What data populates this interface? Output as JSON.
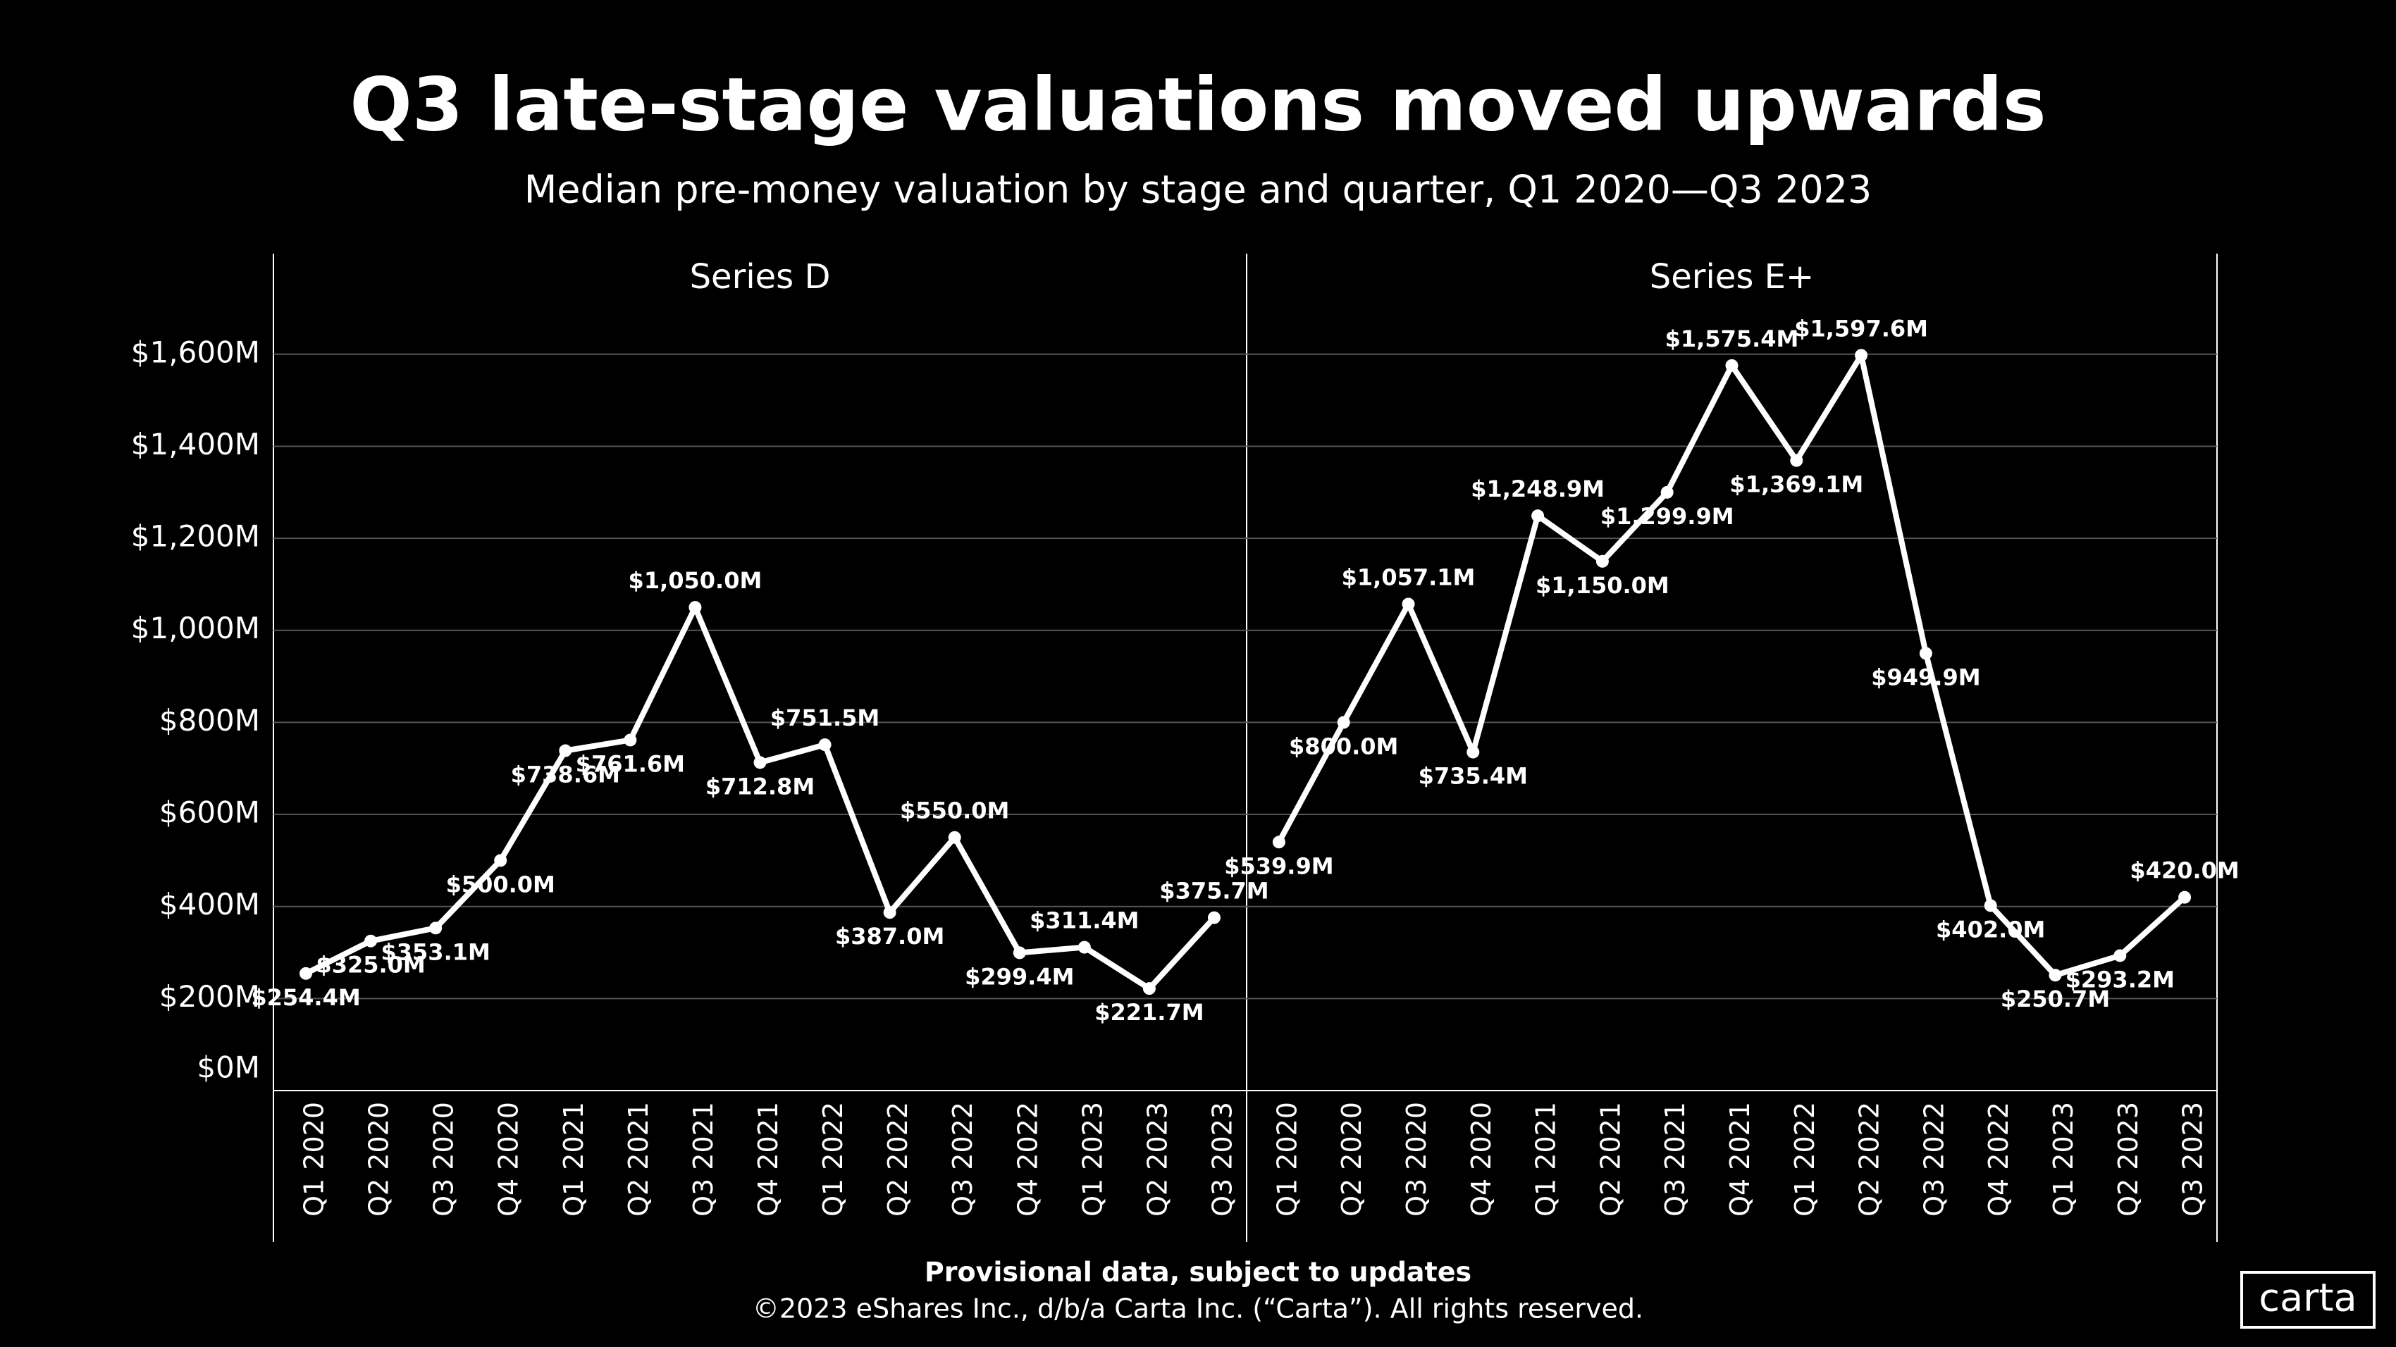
{
  "title": "Q3 late-stage valuations moved upwards",
  "subtitle": "Median pre-money valuation by stage and quarter, Q1 2020—Q3 2023",
  "footer": {
    "note": "Provisional data, subject to updates",
    "copyright": "©2023 eShares Inc., d/b/a Carta Inc. (“Carta”). All rights reserved.",
    "logo": "carta"
  },
  "chart_data": [
    {
      "type": "line",
      "title": "Series D",
      "color": "#ffffff",
      "grid": true,
      "categories": [
        "Q1 2020",
        "Q2 2020",
        "Q3 2020",
        "Q4 2020",
        "Q1 2021",
        "Q2 2021",
        "Q3 2021",
        "Q4 2021",
        "Q1 2022",
        "Q2 2022",
        "Q3 2022",
        "Q4 2022",
        "Q1 2023",
        "Q2 2023",
        "Q3 2023"
      ],
      "values": [
        254.4,
        325.0,
        353.1,
        500.0,
        738.6,
        761.6,
        1050.0,
        712.8,
        751.5,
        387.0,
        550.0,
        299.4,
        311.4,
        221.7,
        375.7
      ],
      "value_labels": [
        "$254.4M",
        "$325.0M",
        "$353.1M",
        "$500.0M",
        "$738.6M",
        "$761.6M",
        "$1,050.0M",
        "$712.8M",
        "$751.5M",
        "$387.0M",
        "$550.0M",
        "$299.4M",
        "$311.4M",
        "$221.7M",
        "$375.7M"
      ],
      "ylim": [
        0,
        1690
      ],
      "yticks": [
        {
          "value": 0,
          "label": "$0M"
        },
        {
          "value": 200,
          "label": "$200M"
        },
        {
          "value": 400,
          "label": "$400M"
        },
        {
          "value": 600,
          "label": "$600M"
        },
        {
          "value": 800,
          "label": "$800M"
        },
        {
          "value": 1000,
          "label": "$1,000M"
        },
        {
          "value": 1200,
          "label": "$1,200M"
        },
        {
          "value": 1400,
          "label": "$1,400M"
        },
        {
          "value": 1600,
          "label": "$1,600M"
        }
      ]
    },
    {
      "type": "line",
      "title": "Series E+",
      "color": "#ffffff",
      "grid": true,
      "categories": [
        "Q1 2020",
        "Q2 2020",
        "Q3 2020",
        "Q4 2020",
        "Q1 2021",
        "Q2 2021",
        "Q3 2021",
        "Q4 2021",
        "Q1 2022",
        "Q2 2022",
        "Q3 2022",
        "Q4 2022",
        "Q1 2023",
        "Q2 2023",
        "Q3 2023"
      ],
      "values": [
        539.9,
        800.0,
        1057.1,
        735.4,
        1248.9,
        1150.0,
        1299.9,
        1575.4,
        1369.1,
        1597.6,
        949.9,
        402.0,
        250.7,
        293.2,
        420.0
      ],
      "value_labels": [
        "$539.9M",
        "$800.0M",
        "$1,057.1M",
        "$735.4M",
        "$1,248.9M",
        "$1,150.0M",
        "$1,299.9M",
        "$1,575.4M",
        "$1,369.1M",
        "$1,597.6M",
        "$949.9M",
        "$402.0M",
        "$250.7M",
        "$293.2M",
        "$420.0M"
      ],
      "ylim": [
        0,
        1690
      ]
    }
  ]
}
